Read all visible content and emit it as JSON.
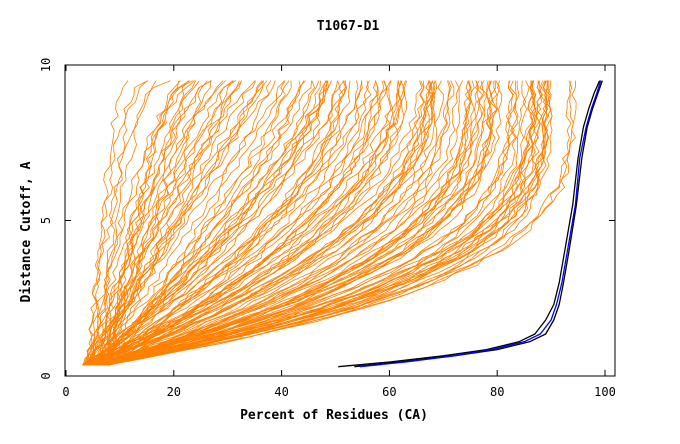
{
  "chart_data": {
    "type": "line",
    "title": "T1067-D1",
    "xlabel": "Percent of Residues (CA)",
    "ylabel": "Distance Cutoff, A",
    "xlim": [
      0,
      100
    ],
    "ylim": [
      0,
      10
    ],
    "x_ticks": [
      "0",
      "20",
      "40",
      "60",
      "80",
      "100"
    ],
    "y_ticks": [
      "0",
      "5",
      "10"
    ],
    "grid": false,
    "colors": {
      "models": "#ff8000",
      "highlight_a": "#000000",
      "highlight_b": "#0000ff"
    },
    "series_groups": {
      "models": {
        "count": 140,
        "start_x_range": [
          3,
          8
        ],
        "end_x_range": [
          13,
          93
        ],
        "start_y": 0.35,
        "end_y": 9.5
      }
    },
    "series": [
      {
        "color": "#000000",
        "x": [
          50.5,
          60,
          70,
          78,
          84,
          87,
          89,
          90.5,
          91.5,
          92.5,
          94,
          95,
          96,
          97,
          98,
          99
        ],
        "y": [
          0.3,
          0.45,
          0.65,
          0.85,
          1.1,
          1.35,
          1.8,
          2.3,
          3.0,
          4.0,
          5.5,
          7.0,
          8.0,
          8.6,
          9.1,
          9.5
        ]
      },
      {
        "color": "#000000",
        "x": [
          53.5,
          62,
          72,
          80,
          86,
          89,
          90.5,
          91.5,
          92.3,
          93.3,
          94.7,
          95.7,
          96.7,
          97.7,
          98.7,
          99.5
        ],
        "y": [
          0.3,
          0.45,
          0.65,
          0.85,
          1.1,
          1.35,
          1.8,
          2.3,
          3.0,
          4.0,
          5.5,
          7.0,
          8.0,
          8.6,
          9.1,
          9.5
        ]
      },
      {
        "color": "#0000ff",
        "x": [
          54.5,
          63,
          72,
          79,
          85,
          88,
          90,
          91,
          92,
          93,
          94.5,
          95.3,
          96.5,
          97.5,
          98.5,
          99.2
        ],
        "y": [
          0.3,
          0.45,
          0.65,
          0.85,
          1.1,
          1.35,
          1.8,
          2.3,
          3.0,
          4.0,
          5.5,
          7.0,
          8.0,
          8.6,
          9.1,
          9.5
        ]
      }
    ]
  }
}
